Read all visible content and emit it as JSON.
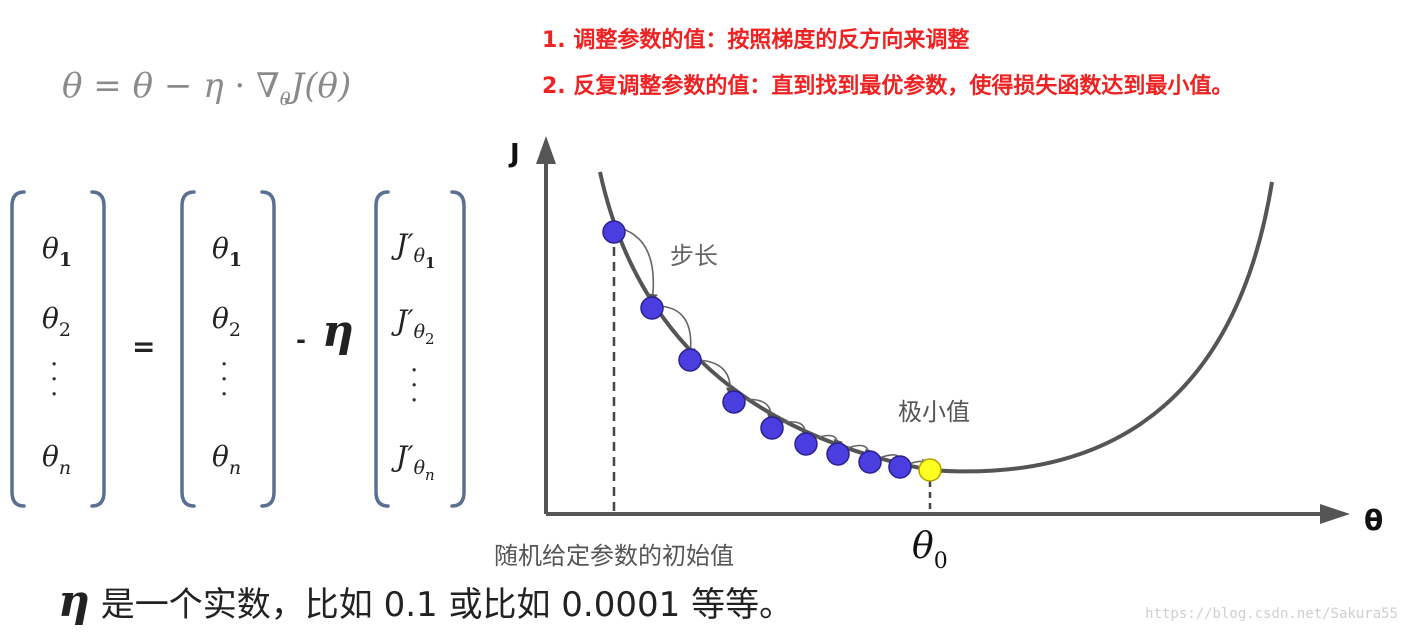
{
  "notes": {
    "note1": "1. 调整参数的值：按照梯度的反方向来调整",
    "note2": "2. 反复调整参数的值：直到找到最优参数，使得损失函数达到最小值。"
  },
  "formula": {
    "lhs": "θ",
    "eq": " = ",
    "theta": "θ",
    "minus": " − ",
    "eta": "η",
    "dot": " · ∇",
    "grad_sub": "θ",
    "J": "J(θ)"
  },
  "vector_equation": {
    "theta": "θ",
    "subs": [
      "1",
      "2",
      "n"
    ],
    "equals": "=",
    "minus": "-",
    "eta": "η",
    "jprime": "J′",
    "vdots": "⋮"
  },
  "diagram": {
    "y_axis_label": "J",
    "x_axis_label": "θ",
    "step_label": "步长",
    "minimum_label": "极小值",
    "init_label": "随机给定参数的初始值",
    "theta0_main": "θ",
    "theta0_sub": "0",
    "dot_color": "#4a3ee0",
    "min_dot_color": "#ffff22"
  },
  "bottom": {
    "eta": "η",
    "text": " 是一个实数，比如 0.1 或比如 0.0001 等等。"
  },
  "watermark": "https://blog.csdn.net/Sakura55"
}
